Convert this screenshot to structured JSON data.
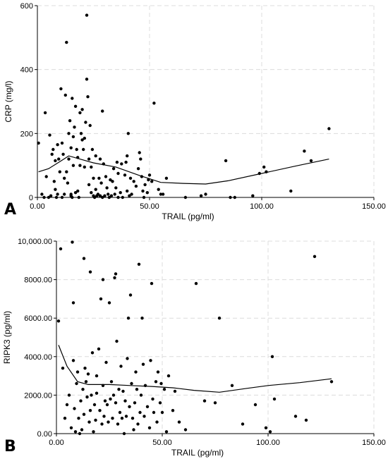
{
  "chart_data": [
    {
      "type": "scatter",
      "panel": "A",
      "xlabel": "TRAIL (pg/ml)",
      "ylabel": "CRP (mg/l)",
      "xlim": [
        0,
        150
      ],
      "ylim": [
        0,
        600
      ],
      "x_ticks": [
        0,
        50,
        100,
        150
      ],
      "x_tick_labels": [
        "0.00",
        "50.00",
        "100.00",
        "150.00"
      ],
      "y_ticks": [
        0,
        200,
        400,
        600
      ],
      "y_tick_labels": [
        "0",
        "200",
        "400",
        "600"
      ],
      "grid": true,
      "points": [
        [
          0.5,
          170
        ],
        [
          2,
          10
        ],
        [
          3,
          0
        ],
        [
          3.5,
          265
        ],
        [
          4,
          65
        ],
        [
          5,
          0
        ],
        [
          5.5,
          195
        ],
        [
          6,
          5
        ],
        [
          6.5,
          135
        ],
        [
          7,
          150
        ],
        [
          7.5,
          50
        ],
        [
          8,
          25
        ],
        [
          8,
          115
        ],
        [
          8.5,
          0
        ],
        [
          9,
          10
        ],
        [
          9,
          165
        ],
        [
          9.5,
          120
        ],
        [
          10,
          80
        ],
        [
          10.5,
          340
        ],
        [
          11,
          170
        ],
        [
          11,
          0
        ],
        [
          11.5,
          135
        ],
        [
          12,
          10
        ],
        [
          12,
          60
        ],
        [
          12.5,
          320
        ],
        [
          13,
          485
        ],
        [
          13,
          80
        ],
        [
          13.5,
          45
        ],
        [
          14,
          200
        ],
        [
          14,
          120
        ],
        [
          14.5,
          240
        ],
        [
          15,
          5
        ],
        [
          15,
          10
        ],
        [
          15,
          155
        ],
        [
          15.5,
          310
        ],
        [
          15.5,
          0
        ],
        [
          16,
          100
        ],
        [
          16,
          190
        ],
        [
          16.5,
          220
        ],
        [
          17,
          15
        ],
        [
          17,
          285
        ],
        [
          17.5,
          150
        ],
        [
          18,
          125
        ],
        [
          18,
          20
        ],
        [
          18.5,
          0
        ],
        [
          19,
          100
        ],
        [
          19,
          265
        ],
        [
          19.5,
          200
        ],
        [
          20,
          180
        ],
        [
          20,
          275
        ],
        [
          20.5,
          150
        ],
        [
          21,
          95
        ],
        [
          21,
          185
        ],
        [
          21.5,
          235
        ],
        [
          22,
          370
        ],
        [
          22,
          570
        ],
        [
          22.5,
          315
        ],
        [
          23,
          40
        ],
        [
          23,
          120
        ],
        [
          23.5,
          225
        ],
        [
          24,
          15
        ],
        [
          24,
          95
        ],
        [
          24.5,
          150
        ],
        [
          25,
          5
        ],
        [
          25,
          60
        ],
        [
          25.5,
          0
        ],
        [
          26,
          130
        ],
        [
          26,
          25
        ],
        [
          26.5,
          5
        ],
        [
          27,
          10
        ],
        [
          27.5,
          60
        ],
        [
          28,
          120
        ],
        [
          28,
          5
        ],
        [
          28.5,
          45
        ],
        [
          29,
          270
        ],
        [
          29,
          0
        ],
        [
          29.5,
          105
        ],
        [
          30,
          5
        ],
        [
          30.5,
          65
        ],
        [
          31,
          30
        ],
        [
          31.5,
          10
        ],
        [
          32,
          0
        ],
        [
          32.5,
          55
        ],
        [
          33,
          5
        ],
        [
          33.5,
          50
        ],
        [
          34,
          90
        ],
        [
          34.5,
          10
        ],
        [
          35,
          30
        ],
        [
          35.5,
          110
        ],
        [
          36,
          75
        ],
        [
          36,
          0
        ],
        [
          37,
          15
        ],
        [
          37.5,
          105
        ],
        [
          38,
          0
        ],
        [
          39,
          70
        ],
        [
          39.5,
          110
        ],
        [
          40,
          20
        ],
        [
          40,
          130
        ],
        [
          40.5,
          200
        ],
        [
          41,
          5
        ],
        [
          41.5,
          60
        ],
        [
          42,
          10
        ],
        [
          43,
          50
        ],
        [
          44,
          35
        ],
        [
          45,
          90
        ],
        [
          45.5,
          140
        ],
        [
          46,
          120
        ],
        [
          46.5,
          65
        ],
        [
          47,
          20
        ],
        [
          47.5,
          0
        ],
        [
          48,
          40
        ],
        [
          49,
          15
        ],
        [
          49.5,
          55
        ],
        [
          50,
          70
        ],
        [
          51,
          50
        ],
        [
          52,
          295
        ],
        [
          54,
          25
        ],
        [
          55,
          10
        ],
        [
          56,
          10
        ],
        [
          57.5,
          60
        ],
        [
          66,
          0
        ],
        [
          73,
          5
        ],
        [
          75,
          10
        ],
        [
          84,
          115
        ],
        [
          86,
          0
        ],
        [
          88,
          0
        ],
        [
          96,
          5
        ],
        [
          99,
          75
        ],
        [
          101,
          95
        ],
        [
          102,
          80
        ],
        [
          113,
          20
        ],
        [
          119,
          145
        ],
        [
          122,
          115
        ],
        [
          130,
          215
        ]
      ],
      "trend": [
        [
          0.5,
          80
        ],
        [
          5,
          90
        ],
        [
          10,
          112
        ],
        [
          14,
          130
        ],
        [
          18,
          122
        ],
        [
          25,
          108
        ],
        [
          35,
          95
        ],
        [
          45,
          70
        ],
        [
          55,
          47
        ],
        [
          65,
          44
        ],
        [
          75,
          42
        ],
        [
          85,
          52
        ],
        [
          100,
          75
        ],
        [
          115,
          98
        ],
        [
          130,
          120
        ]
      ]
    },
    {
      "type": "scatter",
      "panel": "B",
      "xlabel": "TRAIL (pg/ml)",
      "ylabel": "RIPK3 (pg/ml)",
      "xlim": [
        0,
        150
      ],
      "ylim": [
        0,
        10000
      ],
      "x_ticks": [
        0,
        50,
        100,
        150
      ],
      "x_tick_labels": [
        "0.00",
        "50.00",
        "100.00",
        "150.00"
      ],
      "y_ticks": [
        0,
        2000,
        4000,
        6000,
        8000,
        10000
      ],
      "y_tick_labels": [
        "0.00",
        "2000.00",
        "4000.00",
        "6000.00",
        "8000.00",
        "10,000.00"
      ],
      "grid": true,
      "points": [
        [
          1,
          5850
        ],
        [
          2,
          9600
        ],
        [
          3,
          3400
        ],
        [
          4,
          800
        ],
        [
          5,
          1500
        ],
        [
          6,
          2000
        ],
        [
          7,
          300
        ],
        [
          7.5,
          9950
        ],
        [
          8,
          3800
        ],
        [
          8,
          6800
        ],
        [
          8.5,
          1300
        ],
        [
          9,
          100
        ],
        [
          9.5,
          2600
        ],
        [
          10,
          3200
        ],
        [
          10.5,
          800
        ],
        [
          11,
          0
        ],
        [
          11.5,
          1700
        ],
        [
          12,
          200
        ],
        [
          12.5,
          2300
        ],
        [
          13,
          9100
        ],
        [
          13,
          1000
        ],
        [
          13.5,
          3400
        ],
        [
          14,
          2700
        ],
        [
          14.5,
          1900
        ],
        [
          15,
          3100
        ],
        [
          15.5,
          600
        ],
        [
          16,
          8400
        ],
        [
          16,
          1200
        ],
        [
          16.5,
          2000
        ],
        [
          17,
          4200
        ],
        [
          17.5,
          100
        ],
        [
          18,
          1500
        ],
        [
          18.5,
          700
        ],
        [
          19,
          3000
        ],
        [
          19,
          2100
        ],
        [
          20,
          4400
        ],
        [
          20.5,
          1200
        ],
        [
          21,
          7000
        ],
        [
          21.5,
          500
        ],
        [
          22,
          2500
        ],
        [
          22,
          8000
        ],
        [
          22.5,
          900
        ],
        [
          23,
          1700
        ],
        [
          23.5,
          3700
        ],
        [
          24,
          1500
        ],
        [
          24.5,
          600
        ],
        [
          25,
          6800
        ],
        [
          25.5,
          1800
        ],
        [
          26,
          2700
        ],
        [
          26.5,
          800
        ],
        [
          27,
          2000
        ],
        [
          27.5,
          8100
        ],
        [
          28,
          1600
        ],
        [
          28,
          8300
        ],
        [
          28.5,
          4800
        ],
        [
          29,
          500
        ],
        [
          29.5,
          2300
        ],
        [
          30,
          1100
        ],
        [
          30.5,
          3500
        ],
        [
          31,
          800
        ],
        [
          31.5,
          2200
        ],
        [
          32,
          0
        ],
        [
          32.5,
          1700
        ],
        [
          33,
          900
        ],
        [
          33.5,
          3900
        ],
        [
          34,
          6000
        ],
        [
          34.5,
          1400
        ],
        [
          35,
          7200
        ],
        [
          35.5,
          2600
        ],
        [
          36,
          800
        ],
        [
          36.5,
          200
        ],
        [
          37,
          1600
        ],
        [
          37.5,
          3200
        ],
        [
          38,
          2300
        ],
        [
          38.5,
          500
        ],
        [
          39,
          8800
        ],
        [
          39.5,
          1100
        ],
        [
          40,
          2000
        ],
        [
          40.5,
          6000
        ],
        [
          41,
          3600
        ],
        [
          41.5,
          900
        ],
        [
          42,
          2500
        ],
        [
          43,
          1400
        ],
        [
          44,
          300
        ],
        [
          44.5,
          3800
        ],
        [
          45,
          7800
        ],
        [
          45.5,
          1800
        ],
        [
          46,
          1100
        ],
        [
          47,
          2700
        ],
        [
          47.5,
          600
        ],
        [
          48,
          3200
        ],
        [
          49,
          1600
        ],
        [
          49.5,
          2600
        ],
        [
          50,
          1100
        ],
        [
          51,
          2300
        ],
        [
          52,
          100
        ],
        [
          53,
          3000
        ],
        [
          55,
          1200
        ],
        [
          56,
          2200
        ],
        [
          58,
          600
        ],
        [
          61,
          200
        ],
        [
          66,
          7800
        ],
        [
          70,
          1700
        ],
        [
          75,
          1600
        ],
        [
          77,
          6000
        ],
        [
          83,
          2500
        ],
        [
          88,
          500
        ],
        [
          94,
          1500
        ],
        [
          99,
          300
        ],
        [
          101,
          100
        ],
        [
          102,
          4000
        ],
        [
          103,
          1800
        ],
        [
          113,
          900
        ],
        [
          118,
          700
        ],
        [
          122,
          9200
        ],
        [
          130,
          2700
        ]
      ],
      "trend": [
        [
          1,
          4600
        ],
        [
          5,
          3500
        ],
        [
          10,
          2700
        ],
        [
          15,
          2550
        ],
        [
          25,
          2550
        ],
        [
          35,
          2500
        ],
        [
          45,
          2450
        ],
        [
          55,
          2380
        ],
        [
          65,
          2250
        ],
        [
          77,
          2150
        ],
        [
          90,
          2350
        ],
        [
          100,
          2500
        ],
        [
          115,
          2650
        ],
        [
          130,
          2850
        ]
      ]
    }
  ],
  "panel_labels": [
    "A",
    "B"
  ]
}
